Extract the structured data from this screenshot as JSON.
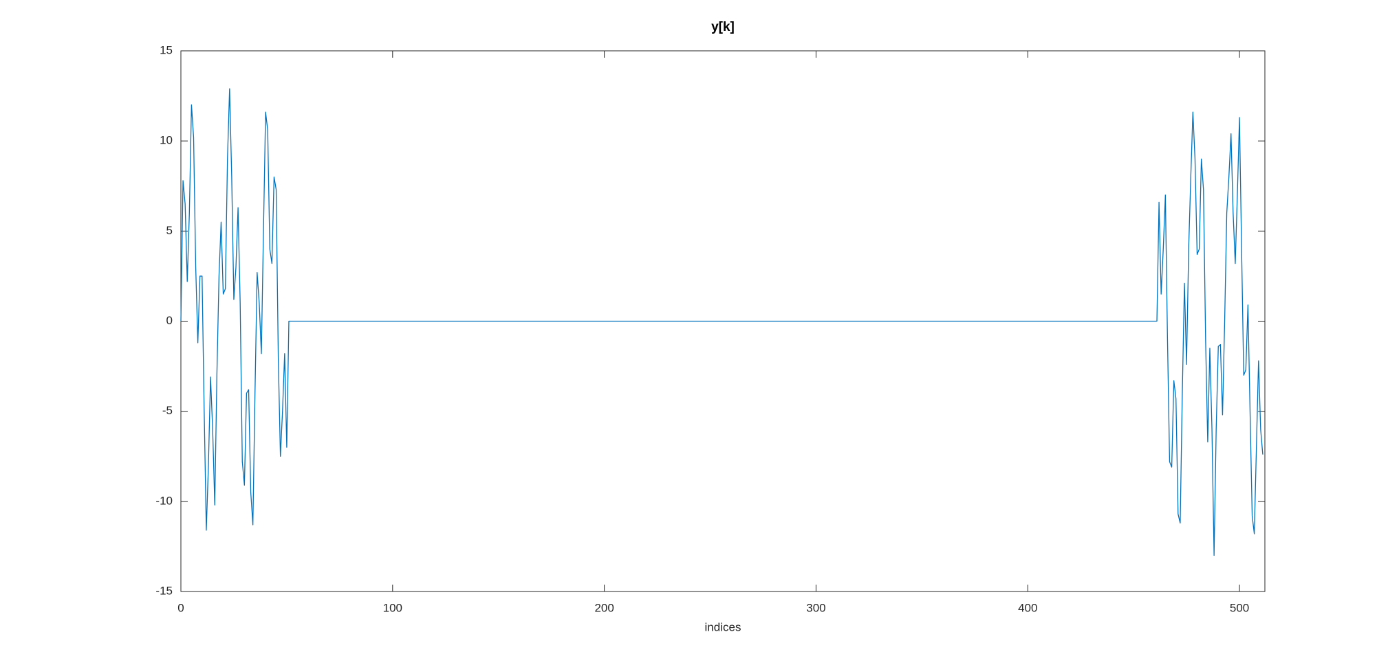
{
  "chart_data": {
    "type": "line",
    "title": "y[k]",
    "x_label": "indices",
    "x": [
      0,
      1,
      2,
      3,
      4,
      5,
      6,
      7,
      8,
      9,
      10,
      11,
      12,
      13,
      14,
      15,
      16,
      17,
      18,
      19,
      20,
      21,
      22,
      23,
      24,
      25,
      26,
      27,
      28,
      29,
      30,
      31,
      32,
      33,
      34,
      35,
      36,
      37,
      38,
      39,
      40,
      41,
      42,
      43,
      44,
      45,
      46,
      47,
      48,
      49,
      50,
      51,
      461,
      462,
      463,
      464,
      465,
      466,
      467,
      468,
      469,
      470,
      471,
      472,
      473,
      474,
      475,
      476,
      477,
      478,
      479,
      480,
      481,
      482,
      483,
      484,
      485,
      486,
      487,
      488,
      489,
      490,
      491,
      492,
      493,
      494,
      495,
      496,
      497,
      498,
      499,
      500,
      501,
      502,
      503,
      504,
      505,
      506,
      507,
      508,
      509,
      510,
      511
    ],
    "series": [
      {
        "color": "#0072bd",
        "values": [
          0,
          7.8,
          6.5,
          2.2,
          6,
          12,
          10.2,
          3,
          -1.2,
          2.5,
          2.5,
          -5,
          -11.6,
          -8,
          -3.1,
          -6,
          -10.2,
          -3,
          2.5,
          5.5,
          1.5,
          1.8,
          9,
          12.9,
          8,
          1.2,
          3,
          6.3,
          1,
          -7.8,
          -9.1,
          -4,
          -3.8,
          -9.5,
          -11.3,
          -4,
          2.7,
          1,
          -1.8,
          5,
          11.6,
          10.6,
          4,
          3.2,
          8,
          7.3,
          -2,
          -7.5,
          -5,
          -1.8,
          -7,
          0,
          0,
          6.6,
          1.5,
          4,
          7,
          -1,
          -7.8,
          -8.1,
          -3.3,
          -4.3,
          -10.7,
          -11.2,
          -4,
          2.1,
          -2.4,
          4,
          8,
          11.6,
          9,
          3.7,
          4,
          9,
          7.3,
          -1,
          -6.7,
          -1.5,
          -6,
          -13,
          -6,
          -1.4,
          -1.3,
          -5.2,
          0,
          6,
          8,
          10.4,
          6,
          3.2,
          7,
          11.3,
          4,
          -3,
          -2.7,
          0.9,
          -5,
          -10.8,
          -11.8,
          -7,
          -2.2,
          -6,
          -7.4
        ]
      }
    ],
    "xlim": [
      0,
      512
    ],
    "xticks": [
      0,
      100,
      200,
      300,
      400,
      500
    ],
    "ylim": [
      -15,
      15
    ],
    "yticks": [
      -15,
      -10,
      -5,
      0,
      5,
      10,
      15
    ],
    "grid": false
  }
}
